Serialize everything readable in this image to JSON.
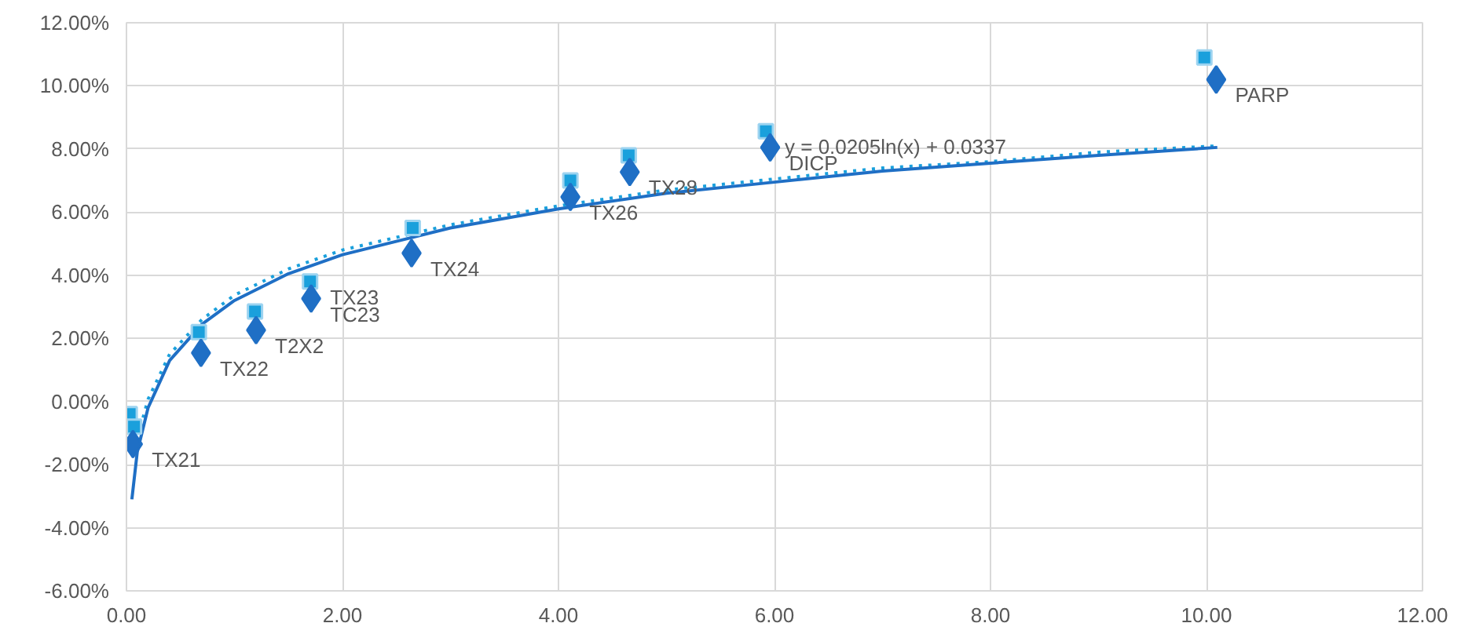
{
  "chart_data": {
    "type": "scatter",
    "xlim": [
      0,
      12
    ],
    "ylim": [
      -6,
      12
    ],
    "xticks": [
      {
        "value": 0,
        "label": "0.00"
      },
      {
        "value": 2,
        "label": "2.00"
      },
      {
        "value": 4,
        "label": "4.00"
      },
      {
        "value": 6,
        "label": "6.00"
      },
      {
        "value": 8,
        "label": "8.00"
      },
      {
        "value": 10,
        "label": "10.00"
      },
      {
        "value": 12,
        "label": "12.00"
      }
    ],
    "yticks": [
      {
        "value": -6,
        "label": "-6.00%"
      },
      {
        "value": -4,
        "label": "-4.00%"
      },
      {
        "value": -2,
        "label": "-2.00%"
      },
      {
        "value": 0,
        "label": "0.00%"
      },
      {
        "value": 2,
        "label": "2.00%"
      },
      {
        "value": 4,
        "label": "4.00%"
      },
      {
        "value": 6,
        "label": "6.00%"
      },
      {
        "value": 8,
        "label": "8.00%"
      },
      {
        "value": 10,
        "label": "10.00%"
      },
      {
        "value": 12,
        "label": "12.00%"
      }
    ],
    "grid": true,
    "series": [
      {
        "type": "line",
        "color": "#1aa0dc",
        "line_style": "dotted",
        "marker": "none",
        "x": [
          0.13,
          0.2,
          0.4,
          0.7,
          1,
          1.5,
          2,
          3,
          4,
          5,
          6,
          7,
          8,
          9,
          10.1
        ],
        "values": [
          -0.8,
          0.07,
          1.5,
          2.6,
          3.37,
          4.2,
          4.8,
          5.6,
          6.2,
          6.7,
          7.05,
          7.4,
          7.6,
          7.9,
          8.1
        ]
      },
      {
        "type": "line",
        "color": "#1f6fc5",
        "line_style": "solid",
        "marker": "none",
        "x": [
          0.05,
          0.1,
          0.2,
          0.4,
          0.7,
          1,
          1.5,
          2,
          3,
          4,
          5,
          6,
          7,
          8,
          9,
          10.1
        ],
        "values": [
          -3.1,
          -1.6,
          -0.2,
          1.3,
          2.45,
          3.2,
          4.05,
          4.65,
          5.5,
          6.1,
          6.6,
          6.95,
          7.3,
          7.55,
          7.8,
          8.05
        ]
      },
      {
        "color": "#1aa0dc",
        "marker": "square",
        "x": [
          0.03,
          0.07,
          0.67,
          1.19,
          1.7,
          2.65,
          4.11,
          4.65,
          5.92,
          9.98
        ],
        "values": [
          -0.4,
          -0.8,
          2.2,
          2.85,
          3.8,
          5.5,
          7.0,
          7.8,
          8.56,
          10.9
        ]
      },
      {
        "color": "#1f6fc5",
        "marker": "diamond",
        "x": [
          0.06,
          0.69,
          1.2,
          1.71,
          2.64,
          4.11,
          4.66,
          5.96,
          10.09
        ],
        "values": [
          -1.35,
          1.54,
          2.26,
          3.26,
          4.7,
          6.48,
          7.27,
          8.05,
          10.2
        ]
      }
    ],
    "annotations": [
      {
        "text": "TX21",
        "x": 0.06,
        "y": -1.35
      },
      {
        "text": "TX22",
        "x": 0.69,
        "y": 1.54
      },
      {
        "text": "T2X2",
        "x": 1.2,
        "y": 2.26
      },
      {
        "text": "TC23",
        "x": 1.71,
        "y": 3.26
      },
      {
        "text": "TX23",
        "x": 1.71,
        "y": 3.8
      },
      {
        "text": "TX24",
        "x": 2.64,
        "y": 4.7
      },
      {
        "text": "TX26",
        "x": 4.11,
        "y": 6.48
      },
      {
        "text": "TX28",
        "x": 4.66,
        "y": 7.27
      },
      {
        "text": "DICP",
        "x": 5.96,
        "y": 8.05
      },
      {
        "text": "PARP",
        "x": 10.09,
        "y": 10.2
      },
      {
        "text": "y = 0.0205ln(x) + 0.0337",
        "x": 5.92,
        "y": 8.56
      }
    ]
  }
}
